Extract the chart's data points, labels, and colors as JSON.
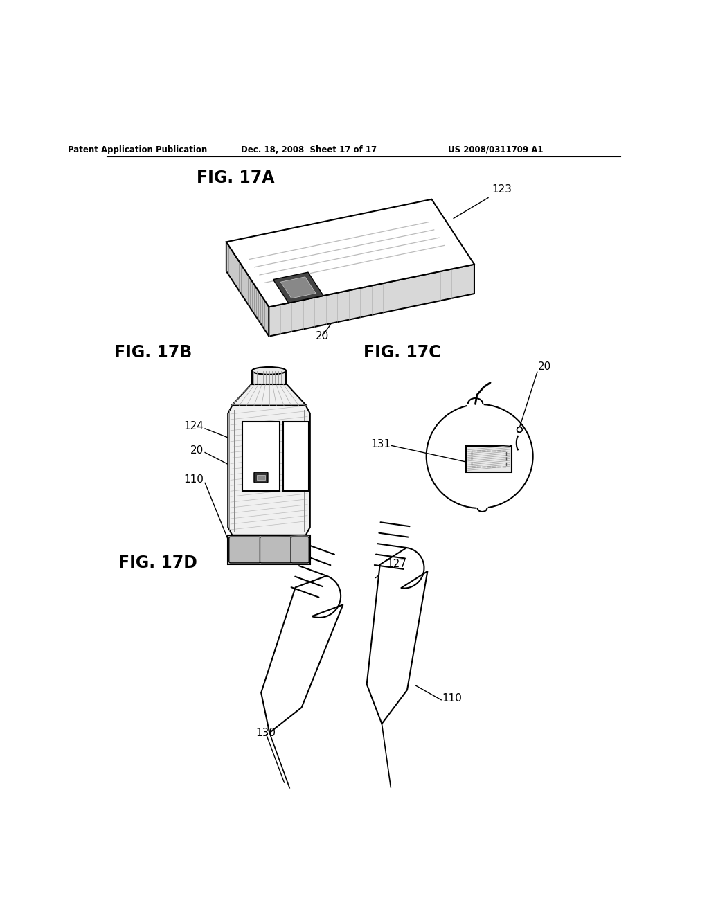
{
  "header_left": "Patent Application Publication",
  "header_middle": "Dec. 18, 2008  Sheet 17 of 17",
  "header_right": "US 2008/0311709 A1",
  "fig17a_label": "FIG. 17A",
  "fig17b_label": "FIG. 17B",
  "fig17c_label": "FIG. 17C",
  "fig17d_label": "FIG. 17D",
  "bg_color": "#ffffff",
  "line_color": "#000000"
}
